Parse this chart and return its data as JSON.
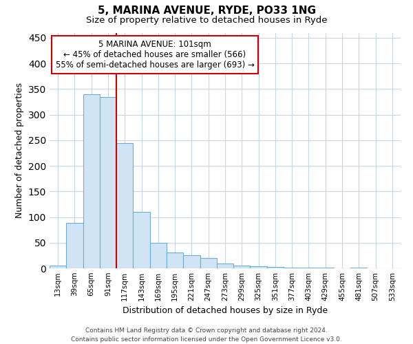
{
  "title1": "5, MARINA AVENUE, RYDE, PO33 1NG",
  "title2": "Size of property relative to detached houses in Ryde",
  "xlabel": "Distribution of detached houses by size in Ryde",
  "ylabel": "Number of detached properties",
  "categories": [
    "13sqm",
    "39sqm",
    "65sqm",
    "91sqm",
    "117sqm",
    "143sqm",
    "169sqm",
    "195sqm",
    "221sqm",
    "247sqm",
    "273sqm",
    "299sqm",
    "325sqm",
    "351sqm",
    "377sqm",
    "403sqm",
    "429sqm",
    "455sqm",
    "481sqm",
    "507sqm",
    "533sqm"
  ],
  "values": [
    5,
    88,
    340,
    335,
    245,
    110,
    50,
    31,
    25,
    20,
    9,
    5,
    4,
    3,
    2,
    1,
    1,
    0,
    1,
    0,
    0
  ],
  "bar_color": "#d0e4f5",
  "bar_edge_color": "#6aaed6",
  "vline_x": 3.5,
  "vline_color": "#cc0000",
  "annotation_lines": [
    "5 MARINA AVENUE: 101sqm",
    "← 45% of detached houses are smaller (566)",
    "55% of semi-detached houses are larger (693) →"
  ],
  "annotation_box_color": "#cc0000",
  "ylim": [
    0,
    460
  ],
  "yticks": [
    0,
    50,
    100,
    150,
    200,
    250,
    300,
    350,
    400,
    450
  ],
  "footer": "Contains HM Land Registry data © Crown copyright and database right 2024.\nContains public sector information licensed under the Open Government Licence v3.0.",
  "bg_color": "#ffffff",
  "grid_color": "#c8d4e8"
}
